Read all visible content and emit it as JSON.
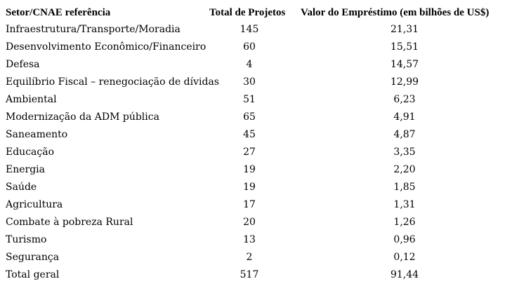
{
  "table": {
    "headers": {
      "setor": "Setor/CNAE referência",
      "total": "Total de Projetos",
      "valor": "Valor do Empréstimo (em bilhões de US$)"
    },
    "rows": [
      {
        "setor": "Infraestrutura/Transporte/Moradia",
        "total": "145",
        "valor": "21,31"
      },
      {
        "setor": "Desenvolvimento Econômico/Financeiro",
        "total": "60",
        "valor": "15,51"
      },
      {
        "setor": "Defesa",
        "total": "4",
        "valor": "14,57"
      },
      {
        "setor": "Equilíbrio Fiscal – renegociação de dívidas",
        "total": "30",
        "valor": "12,99"
      },
      {
        "setor": "Ambiental",
        "total": "51",
        "valor": "6,23"
      },
      {
        "setor": "Modernização da ADM pública",
        "total": "65",
        "valor": "4,91"
      },
      {
        "setor": "Saneamento",
        "total": "45",
        "valor": "4,87"
      },
      {
        "setor": "Educação",
        "total": "27",
        "valor": "3,35"
      },
      {
        "setor": "Energia",
        "total": "19",
        "valor": "2,20"
      },
      {
        "setor": "Saúde",
        "total": "19",
        "valor": "1,85"
      },
      {
        "setor": "Agricultura",
        "total": "17",
        "valor": "1,31"
      },
      {
        "setor": "Combate à pobreza Rural",
        "total": "20",
        "valor": "1,26"
      },
      {
        "setor": "Turismo",
        "total": "13",
        "valor": "0,96"
      },
      {
        "setor": "Segurança",
        "total": "2",
        "valor": "0,12"
      },
      {
        "setor": "Total geral",
        "total": "517",
        "valor": "91,44"
      }
    ]
  }
}
